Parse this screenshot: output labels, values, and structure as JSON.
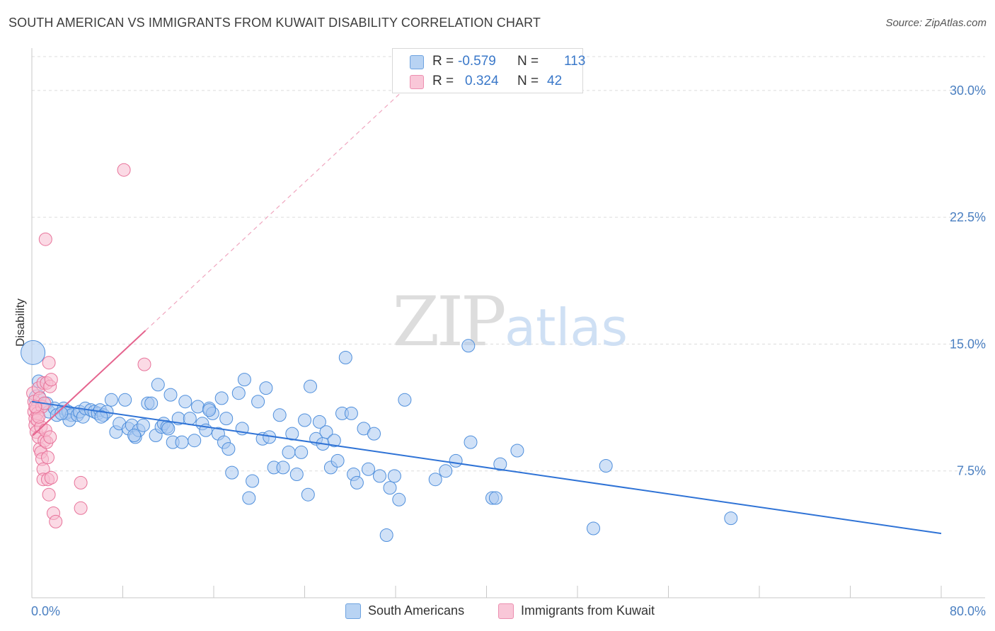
{
  "header": {
    "title": "SOUTH AMERICAN VS IMMIGRANTS FROM KUWAIT DISABILITY CORRELATION CHART",
    "source": "Source: ZipAtlas.com"
  },
  "watermark": {
    "zip": "ZIP",
    "atlas": "atlas"
  },
  "legend": {
    "r_label": "R =",
    "n_label": "N =",
    "rows": [
      {
        "r": "-0.579",
        "n": "113",
        "color": "#a9c9f0"
      },
      {
        "r": "0.324",
        "n": "42",
        "color": "#f7bcd0"
      }
    ]
  },
  "bottom_legend": {
    "items": [
      {
        "label": "South Americans",
        "color": "#a9c9f0"
      },
      {
        "label": "Immigrants from Kuwait",
        "color": "#f7bcd0"
      }
    ]
  },
  "chart_data": {
    "type": "scatter",
    "title": "SOUTH AMERICAN VS IMMIGRANTS FROM KUWAIT DISABILITY CORRELATION CHART",
    "xlabel": "",
    "ylabel": "Disability",
    "xlim": [
      0,
      80
    ],
    "ylim": [
      0,
      32
    ],
    "x_tick_labels": [
      "0.0%",
      "80.0%"
    ],
    "y_ticks": [
      7.5,
      15.0,
      22.5,
      30.0
    ],
    "y_tick_labels": [
      "7.5%",
      "15.0%",
      "22.5%",
      "30.0%"
    ],
    "grid": true,
    "legend_position": "top-center",
    "series": [
      {
        "name": "South Americans",
        "color": "#4f8fdc",
        "fill": "#a9c9f0",
        "trend": {
          "x": [
            0,
            80
          ],
          "y": [
            11.6,
            3.8
          ],
          "r": -0.579,
          "n": 113
        },
        "points": [
          [
            0.1,
            14.5
          ],
          [
            0.5,
            11.8
          ],
          [
            0.6,
            12.8
          ],
          [
            1.3,
            11.5
          ],
          [
            1.5,
            11.0
          ],
          [
            2.0,
            11.2
          ],
          [
            2.2,
            10.8
          ],
          [
            2.8,
            11.2
          ],
          [
            3.0,
            10.9
          ],
          [
            3.2,
            11.0
          ],
          [
            3.5,
            10.8
          ],
          [
            3.3,
            10.5
          ],
          [
            4.0,
            10.8
          ],
          [
            4.2,
            11.0
          ],
          [
            4.5,
            10.7
          ],
          [
            4.7,
            11.2
          ],
          [
            5.2,
            11.1
          ],
          [
            5.5,
            11.0
          ],
          [
            5.8,
            10.9
          ],
          [
            6.0,
            11.1
          ],
          [
            6.3,
            10.8
          ],
          [
            6.6,
            11.0
          ],
          [
            7.0,
            11.7
          ],
          [
            7.4,
            9.8
          ],
          [
            7.7,
            10.3
          ],
          [
            8.2,
            11.7
          ],
          [
            8.5,
            10.0
          ],
          [
            8.8,
            10.2
          ],
          [
            9.1,
            9.5
          ],
          [
            9.4,
            9.9
          ],
          [
            9.8,
            10.2
          ],
          [
            10.2,
            11.5
          ],
          [
            10.5,
            11.5
          ],
          [
            10.9,
            9.6
          ],
          [
            11.1,
            12.6
          ],
          [
            11.4,
            10.1
          ],
          [
            11.6,
            10.3
          ],
          [
            11.9,
            10.1
          ],
          [
            12.2,
            12.0
          ],
          [
            12.4,
            9.2
          ],
          [
            12.9,
            10.6
          ],
          [
            13.2,
            9.2
          ],
          [
            13.5,
            11.6
          ],
          [
            13.9,
            10.6
          ],
          [
            14.3,
            9.3
          ],
          [
            14.6,
            11.3
          ],
          [
            15.0,
            10.3
          ],
          [
            15.3,
            9.9
          ],
          [
            15.6,
            11.2
          ],
          [
            15.9,
            10.9
          ],
          [
            16.4,
            9.7
          ],
          [
            16.7,
            11.8
          ],
          [
            16.9,
            9.2
          ],
          [
            17.3,
            8.8
          ],
          [
            17.6,
            7.4
          ],
          [
            18.2,
            12.1
          ],
          [
            18.5,
            10.0
          ],
          [
            18.7,
            12.9
          ],
          [
            19.1,
            5.9
          ],
          [
            19.4,
            6.9
          ],
          [
            19.9,
            11.6
          ],
          [
            20.3,
            9.4
          ],
          [
            20.6,
            12.4
          ],
          [
            20.9,
            9.5
          ],
          [
            21.3,
            7.7
          ],
          [
            21.8,
            10.8
          ],
          [
            22.1,
            7.7
          ],
          [
            22.6,
            8.6
          ],
          [
            22.9,
            9.7
          ],
          [
            23.3,
            7.3
          ],
          [
            23.7,
            8.6
          ],
          [
            24.0,
            10.5
          ],
          [
            24.3,
            6.1
          ],
          [
            24.5,
            12.5
          ],
          [
            25.0,
            9.4
          ],
          [
            25.3,
            10.4
          ],
          [
            25.6,
            9.1
          ],
          [
            25.9,
            9.8
          ],
          [
            26.3,
            7.7
          ],
          [
            26.6,
            9.3
          ],
          [
            26.9,
            8.1
          ],
          [
            27.3,
            10.9
          ],
          [
            27.6,
            14.2
          ],
          [
            28.1,
            10.9
          ],
          [
            28.3,
            7.3
          ],
          [
            28.6,
            6.8
          ],
          [
            29.2,
            10.0
          ],
          [
            29.6,
            7.6
          ],
          [
            30.1,
            9.7
          ],
          [
            30.6,
            7.2
          ],
          [
            31.5,
            6.5
          ],
          [
            31.9,
            7.2
          ],
          [
            32.3,
            5.8
          ],
          [
            32.8,
            11.7
          ],
          [
            31.2,
            3.7
          ],
          [
            35.5,
            7.0
          ],
          [
            36.4,
            7.5
          ],
          [
            37.3,
            8.1
          ],
          [
            38.4,
            14.9
          ],
          [
            38.6,
            9.2
          ],
          [
            40.5,
            5.9
          ],
          [
            40.8,
            5.9
          ],
          [
            41.2,
            7.9
          ],
          [
            42.7,
            8.7
          ],
          [
            49.4,
            4.1
          ],
          [
            50.5,
            7.8
          ],
          [
            61.5,
            4.7
          ],
          [
            17.1,
            10.6
          ],
          [
            15.6,
            11.1
          ],
          [
            12.0,
            10.0
          ],
          [
            9.0,
            9.6
          ],
          [
            6.1,
            10.7
          ],
          [
            2.6,
            10.9
          ]
        ]
      },
      {
        "name": "Immigrants from Kuwait",
        "color": "#e8739a",
        "fill": "#f7bcd0",
        "trend": {
          "x": [
            0.1,
            10.0
          ],
          "y": [
            9.6,
            15.8
          ],
          "r": 0.324,
          "n": 42
        },
        "points": [
          [
            0.1,
            12.1
          ],
          [
            0.2,
            11.6
          ],
          [
            0.2,
            11.0
          ],
          [
            0.3,
            10.6
          ],
          [
            0.3,
            10.2
          ],
          [
            0.4,
            11.2
          ],
          [
            0.4,
            9.8
          ],
          [
            0.5,
            10.9
          ],
          [
            0.5,
            10.5
          ],
          [
            0.6,
            12.4
          ],
          [
            0.6,
            9.5
          ],
          [
            0.7,
            11.8
          ],
          [
            0.7,
            8.8
          ],
          [
            0.8,
            10.1
          ],
          [
            0.8,
            8.6
          ],
          [
            0.9,
            11.3
          ],
          [
            0.9,
            8.2
          ],
          [
            1.0,
            12.7
          ],
          [
            1.0,
            7.6
          ],
          [
            1.0,
            7.0
          ],
          [
            1.1,
            9.3
          ],
          [
            1.1,
            11.5
          ],
          [
            1.2,
            9.9
          ],
          [
            1.3,
            12.7
          ],
          [
            1.3,
            9.2
          ],
          [
            1.4,
            8.3
          ],
          [
            1.4,
            7.0
          ],
          [
            1.5,
            13.9
          ],
          [
            1.5,
            6.1
          ],
          [
            1.6,
            12.5
          ],
          [
            1.6,
            9.5
          ],
          [
            1.7,
            7.1
          ],
          [
            1.7,
            12.9
          ],
          [
            1.9,
            5.0
          ],
          [
            2.1,
            4.5
          ],
          [
            4.3,
            5.3
          ],
          [
            4.3,
            6.8
          ],
          [
            8.1,
            25.3
          ],
          [
            9.9,
            13.8
          ],
          [
            1.2,
            21.2
          ],
          [
            0.6,
            10.7
          ],
          [
            0.3,
            11.3
          ]
        ]
      }
    ]
  }
}
